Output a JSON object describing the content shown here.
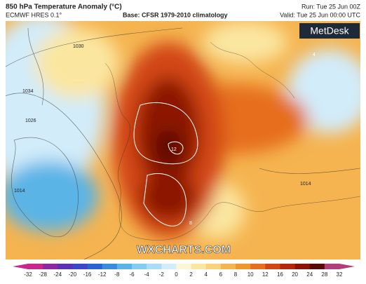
{
  "header": {
    "title": "850 hPa Temperature Anomaly (°C)",
    "model": "ECMWF HRES 0.1°",
    "base": "Base: CFSR 1979-2010 climatology",
    "run": "Run: Tue 25 Jun 00Z",
    "valid": "Valid: Tue 25 Jun 00:00 UTC"
  },
  "logo": "MetDesk",
  "watermark": "WXCHARTS.COM",
  "map_labels": [
    "1034",
    "1026",
    "1030",
    "1014",
    "1014",
    "12",
    "8",
    "4"
  ],
  "colorbar": {
    "ticks": [
      -32,
      -28,
      -24,
      -20,
      -16,
      -12,
      -8,
      -6,
      -4,
      -2,
      0,
      2,
      4,
      6,
      8,
      10,
      12,
      16,
      20,
      24,
      28,
      32
    ],
    "colors": [
      "#c8288c",
      "#8c28a0",
      "#5a32b4",
      "#3c46c8",
      "#2864d2",
      "#3c8cdc",
      "#5ab4e6",
      "#82cdf0",
      "#aadcf5",
      "#d2ecfa",
      "#fdf6d4",
      "#fbe6a0",
      "#fad278",
      "#f5b450",
      "#f0962d",
      "#e66e1e",
      "#d24614",
      "#b4280a",
      "#8c1405",
      "#5a0a05",
      "#b43c78"
    ]
  }
}
